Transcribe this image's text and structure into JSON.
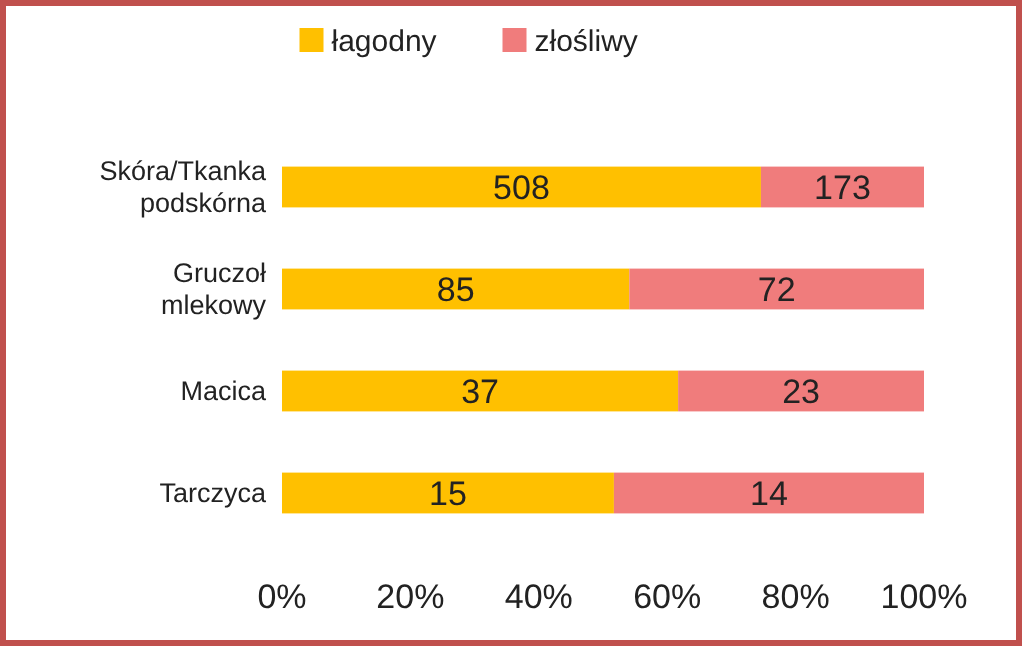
{
  "chart_data": {
    "type": "bar",
    "orientation": "horizontal",
    "stacked": true,
    "legend": "top",
    "categories": [
      "Skóra/Tkanka podskórna",
      "Gruczoł mlekowy",
      "Macica",
      "Tarczyca"
    ],
    "series": [
      {
        "name": "łagodny",
        "color": "#ffc000",
        "values": [
          74.6,
          54.1,
          61.7,
          51.7
        ]
      },
      {
        "name": "złośliwy",
        "color": "#f07c7c",
        "values": [
          25.4,
          45.9,
          38.3,
          48.3
        ]
      }
    ],
    "annotations": [
      "508",
      "173",
      "85",
      "72",
      "37",
      "23",
      "15",
      "14"
    ],
    "xlim": [
      0,
      100
    ],
    "xticks": [
      {
        "value": 0,
        "label": "0%"
      },
      {
        "value": 20,
        "label": "20%"
      },
      {
        "value": 40,
        "label": "40%"
      },
      {
        "value": 60,
        "label": "60%"
      },
      {
        "value": 80,
        "label": "80%"
      },
      {
        "value": 100,
        "label": "100%"
      }
    ]
  }
}
